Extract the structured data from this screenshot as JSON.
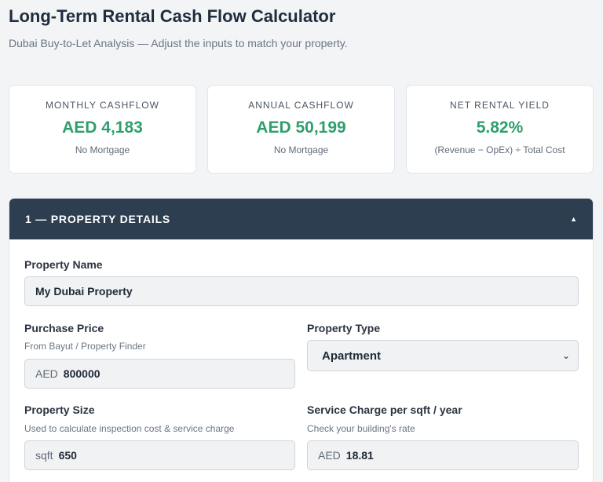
{
  "header": {
    "title": "Long-Term Rental Cash Flow Calculator",
    "subtitle": "Dubai Buy-to-Let Analysis — Adjust the inputs to match your property."
  },
  "stats": [
    {
      "label": "MONTHLY CASHFLOW",
      "value": "AED 4,183",
      "note": "No Mortgage"
    },
    {
      "label": "ANNUAL CASHFLOW",
      "value": "AED 50,199",
      "note": "No Mortgage"
    },
    {
      "label": "NET RENTAL YIELD",
      "value": "5.82%",
      "note": "(Revenue − OpEx) ÷ Total Cost"
    }
  ],
  "section": {
    "title": "1 — PROPERTY DETAILS",
    "collapse_icon": "▲"
  },
  "fields": {
    "property_name": {
      "label": "Property Name",
      "value": "My Dubai Property"
    },
    "purchase_price": {
      "label": "Purchase Price",
      "hint": "From Bayut / Property Finder",
      "prefix": "AED",
      "value": "800000"
    },
    "property_type": {
      "label": "Property Type",
      "value": "Apartment"
    },
    "property_size": {
      "label": "Property Size",
      "hint": "Used to calculate inspection cost & service charge",
      "prefix": "sqft",
      "value": "650"
    },
    "service_charge": {
      "label": "Service Charge per sqft / year",
      "hint": "Check your building's rate",
      "prefix": "AED",
      "value": "18.81"
    }
  },
  "colors": {
    "accent_green": "#2f9e6e",
    "header_dark": "#2d3e50"
  }
}
